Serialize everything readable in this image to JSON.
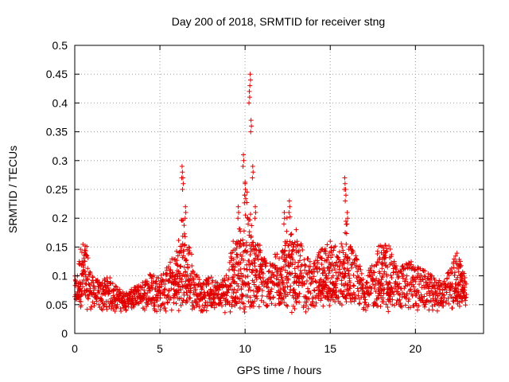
{
  "chart_data": {
    "type": "scatter",
    "title": "Day 200 of 2018, SRMTID for receiver stng",
    "xlabel": "GPS time / hours",
    "ylabel": "SRMTID / TECUs",
    "xlim": [
      0,
      24
    ],
    "ylim": [
      0,
      0.5
    ],
    "xticks": [
      0,
      5,
      10,
      15,
      20
    ],
    "xtick_labels": [
      "0",
      "5",
      "10",
      "15",
      "20"
    ],
    "yticks": [
      0,
      0.05,
      0.1,
      0.15,
      0.2,
      0.25,
      0.3,
      0.35,
      0.4,
      0.45,
      0.5
    ],
    "ytick_labels": [
      "0",
      "0.05",
      "0.1",
      "0.15",
      "0.2",
      "0.25",
      "0.3",
      "0.35",
      "0.4",
      "0.45",
      "0.5"
    ],
    "grid": true,
    "marker": "+",
    "color": "#e00000",
    "series": [
      {
        "name": "SRMTID",
        "generator": "dense GPS-epoch samples from 0 to 23 hours; baseline 0.03-0.12 TECU with enhancements near 6.3 h, 9.5-11 h, 12-13 h and 15-16 h",
        "anchor_points": [
          [
            0.1,
            0.06
          ],
          [
            0.3,
            0.12
          ],
          [
            0.6,
            0.14
          ],
          [
            1.0,
            0.07
          ],
          [
            1.5,
            0.06
          ],
          [
            2.0,
            0.07
          ],
          [
            2.5,
            0.05
          ],
          [
            3.0,
            0.04
          ],
          [
            3.5,
            0.05
          ],
          [
            4.0,
            0.06
          ],
          [
            4.5,
            0.08
          ],
          [
            5.0,
            0.07
          ],
          [
            5.5,
            0.09
          ],
          [
            6.0,
            0.12
          ],
          [
            6.3,
            0.29
          ],
          [
            6.35,
            0.27
          ],
          [
            6.5,
            0.22
          ],
          [
            6.7,
            0.15
          ],
          [
            7.0,
            0.08
          ],
          [
            7.5,
            0.06
          ],
          [
            8.0,
            0.07
          ],
          [
            8.5,
            0.06
          ],
          [
            9.0,
            0.08
          ],
          [
            9.3,
            0.16
          ],
          [
            9.6,
            0.22
          ],
          [
            9.9,
            0.31
          ],
          [
            10.0,
            0.26
          ],
          [
            10.25,
            0.42
          ],
          [
            10.3,
            0.45
          ],
          [
            10.35,
            0.37
          ],
          [
            10.45,
            0.29
          ],
          [
            10.6,
            0.22
          ],
          [
            11.0,
            0.12
          ],
          [
            11.5,
            0.09
          ],
          [
            12.0,
            0.13
          ],
          [
            12.3,
            0.21
          ],
          [
            12.6,
            0.23
          ],
          [
            13.0,
            0.18
          ],
          [
            13.5,
            0.11
          ],
          [
            14.0,
            0.09
          ],
          [
            14.5,
            0.12
          ],
          [
            15.0,
            0.16
          ],
          [
            15.5,
            0.1
          ],
          [
            15.85,
            0.27
          ],
          [
            15.9,
            0.25
          ],
          [
            16.0,
            0.21
          ],
          [
            16.3,
            0.12
          ],
          [
            17.0,
            0.07
          ],
          [
            17.5,
            0.09
          ],
          [
            18.0,
            0.14
          ],
          [
            18.5,
            0.12
          ],
          [
            19.0,
            0.08
          ],
          [
            19.5,
            0.1
          ],
          [
            20.0,
            0.09
          ],
          [
            20.5,
            0.08
          ],
          [
            21.0,
            0.07
          ],
          [
            21.5,
            0.06
          ],
          [
            22.0,
            0.08
          ],
          [
            22.5,
            0.12
          ],
          [
            22.9,
            0.08
          ]
        ]
      }
    ]
  }
}
